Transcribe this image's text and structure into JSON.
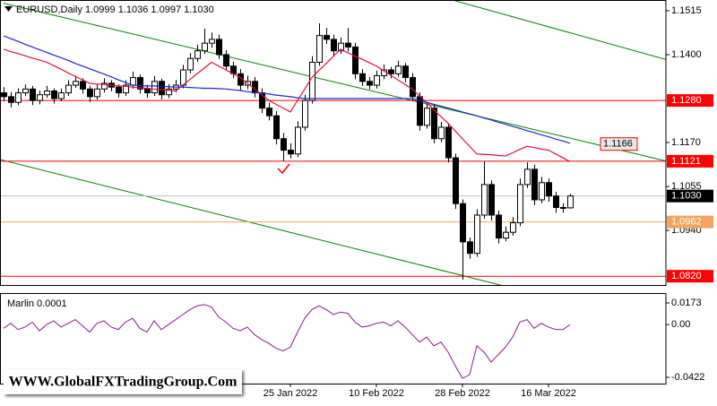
{
  "chart_data": [
    {
      "type": "candlestick",
      "title": "EURUSD,Daily  1.0999 1.1036 1.0997 1.1030",
      "categories": [
        null,
        null,
        null,
        null,
        null,
        null,
        null,
        null,
        null,
        null,
        null,
        null,
        null,
        null,
        null,
        null,
        null,
        null,
        null,
        null,
        null,
        null,
        null,
        null,
        null,
        null,
        null,
        null,
        null,
        null,
        null,
        null,
        null,
        null,
        null,
        null,
        null,
        null,
        null,
        null,
        "25 Jan 2022",
        null,
        null,
        null,
        null,
        null,
        null,
        null,
        null,
        null,
        null,
        null,
        "10 Feb 2022",
        null,
        null,
        null,
        null,
        null,
        null,
        null,
        null,
        null,
        null,
        null,
        "28 Feb 2022",
        null,
        null,
        null,
        null,
        null,
        null,
        null,
        null,
        null,
        null,
        null,
        "16 Mar 2022",
        null,
        null,
        null
      ],
      "candles": [
        [
          1.13,
          1.1315,
          1.1278,
          1.129
        ],
        [
          1.129,
          1.1302,
          1.1262,
          1.1275
        ],
        [
          1.1275,
          1.1312,
          1.1268,
          1.13
        ],
        [
          1.13,
          1.1322,
          1.1291,
          1.131
        ],
        [
          1.131,
          1.1318,
          1.1268,
          1.128
        ],
        [
          1.128,
          1.1306,
          1.127,
          1.1295
        ],
        [
          1.1295,
          1.1318,
          1.1287,
          1.1305
        ],
        [
          1.1305,
          1.1312,
          1.1272,
          1.1285
        ],
        [
          1.1285,
          1.1311,
          1.1278,
          1.13
        ],
        [
          1.13,
          1.1333,
          1.1292,
          1.132
        ],
        [
          1.132,
          1.1345,
          1.1313,
          1.133
        ],
        [
          1.133,
          1.1338,
          1.1298,
          1.131
        ],
        [
          1.131,
          1.1318,
          1.1276,
          1.129
        ],
        [
          1.129,
          1.1322,
          1.1282,
          1.131
        ],
        [
          1.131,
          1.1338,
          1.1301,
          1.1325
        ],
        [
          1.1325,
          1.1333,
          1.1304,
          1.1315
        ],
        [
          1.1315,
          1.1322,
          1.1288,
          1.13
        ],
        [
          1.13,
          1.1333,
          1.1292,
          1.132
        ],
        [
          1.132,
          1.1356,
          1.1311,
          1.134
        ],
        [
          1.134,
          1.1348,
          1.1298,
          1.131
        ],
        [
          1.131,
          1.1321,
          1.1287,
          1.13
        ],
        [
          1.13,
          1.1344,
          1.1292,
          1.133
        ],
        [
          1.133,
          1.1337,
          1.1283,
          1.1295
        ],
        [
          1.1295,
          1.1323,
          1.1286,
          1.131
        ],
        [
          1.131,
          1.1334,
          1.1301,
          1.132
        ],
        [
          1.132,
          1.1373,
          1.1312,
          1.136
        ],
        [
          1.136,
          1.1404,
          1.1351,
          1.139
        ],
        [
          1.139,
          1.1426,
          1.1381,
          1.141
        ],
        [
          1.141,
          1.1468,
          1.1402,
          1.143
        ],
        [
          1.143,
          1.1458,
          1.1418,
          1.144
        ],
        [
          1.144,
          1.1452,
          1.1389,
          1.14
        ],
        [
          1.14,
          1.1412,
          1.1358,
          1.137
        ],
        [
          1.137,
          1.1381,
          1.1338,
          1.135
        ],
        [
          1.135,
          1.1362,
          1.1307,
          1.132
        ],
        [
          1.132,
          1.1345,
          1.131,
          1.133
        ],
        [
          1.133,
          1.1341,
          1.1288,
          1.13
        ],
        [
          1.13,
          1.1312,
          1.1247,
          1.126
        ],
        [
          1.126,
          1.1274,
          1.1228,
          1.124
        ],
        [
          1.124,
          1.1252,
          1.1165,
          1.118
        ],
        [
          1.118,
          1.1195,
          1.1122,
          1.115
        ],
        [
          1.115,
          1.1168,
          1.1128,
          1.114
        ],
        [
          1.114,
          1.1225,
          1.1132,
          1.121
        ],
        [
          1.121,
          1.1295,
          1.1201,
          1.128
        ],
        [
          1.128,
          1.1396,
          1.1272,
          1.138
        ],
        [
          1.138,
          1.1482,
          1.1371,
          1.145
        ],
        [
          1.145,
          1.147,
          1.1428,
          1.144
        ],
        [
          1.144,
          1.1452,
          1.1398,
          1.141
        ],
        [
          1.141,
          1.1445,
          1.1402,
          1.143
        ],
        [
          1.143,
          1.147,
          1.1408,
          1.142
        ],
        [
          1.142,
          1.1431,
          1.1336,
          1.135
        ],
        [
          1.135,
          1.1362,
          1.1318,
          1.133
        ],
        [
          1.133,
          1.1341,
          1.1309,
          1.132
        ],
        [
          1.132,
          1.1358,
          1.1311,
          1.1345
        ],
        [
          1.1345,
          1.1374,
          1.1336,
          1.136
        ],
        [
          1.136,
          1.1368,
          1.1338,
          1.135
        ],
        [
          1.135,
          1.1384,
          1.1342,
          1.137
        ],
        [
          1.137,
          1.1378,
          1.1328,
          1.134
        ],
        [
          1.134,
          1.1352,
          1.1278,
          1.129
        ],
        [
          1.129,
          1.1301,
          1.1201,
          1.1215
        ],
        [
          1.1215,
          1.1274,
          1.1206,
          1.126
        ],
        [
          1.126,
          1.1271,
          1.1168,
          1.118
        ],
        [
          1.118,
          1.1224,
          1.1171,
          1.121
        ],
        [
          1.121,
          1.1221,
          1.1118,
          1.113
        ],
        [
          1.113,
          1.1141,
          1.0996,
          1.101
        ],
        [
          1.101,
          1.1021,
          1.0811,
          1.091
        ],
        [
          1.091,
          1.0921,
          1.0866,
          1.088
        ],
        [
          1.088,
          1.0995,
          1.0871,
          1.098
        ],
        [
          1.098,
          1.112,
          1.0971,
          1.106
        ],
        [
          1.106,
          1.1071,
          1.0966,
          1.098
        ],
        [
          1.098,
          1.0991,
          1.0906,
          1.092
        ],
        [
          1.092,
          1.095,
          1.0911,
          1.0935
        ],
        [
          1.0935,
          1.0975,
          1.0926,
          1.096
        ],
        [
          1.096,
          1.1076,
          1.0951,
          1.106
        ],
        [
          1.106,
          1.1118,
          1.1051,
          1.11
        ],
        [
          1.11,
          1.1112,
          1.1006,
          1.102
        ],
        [
          1.102,
          1.108,
          1.1011,
          1.1065
        ],
        [
          1.1065,
          1.1076,
          1.1015,
          1.103
        ],
        [
          1.103,
          1.1041,
          1.0986,
          1.1
        ],
        [
          1.1,
          1.1011,
          1.0986,
          1.0999
        ],
        [
          1.0999,
          1.1036,
          1.0997,
          1.103
        ]
      ],
      "up_color": "#ffffff",
      "down_color": "#000000",
      "series": [
        {
          "color": "#dc143c",
          "values": [
            1.1414,
            1.1408,
            1.1403,
            1.1397,
            1.1391,
            1.1386,
            1.138,
            1.1371,
            1.1362,
            1.1352,
            1.1343,
            1.1334,
            1.1325,
            1.1323,
            1.1322,
            1.132,
            1.1318,
            1.1317,
            1.1315,
            1.1313,
            1.1312,
            1.131,
            1.1308,
            1.1307,
            1.1305,
            1.132,
            1.1335,
            1.135,
            1.1365,
            1.138,
            1.137,
            1.136,
            1.135,
            1.134,
            1.1325,
            1.131,
            1.1295,
            1.128,
            1.127,
            1.126,
            1.125,
            1.128,
            1.131,
            1.134,
            1.1359,
            1.1377,
            1.1396,
            1.1414,
            1.1405,
            1.1396,
            1.1388,
            1.1379,
            1.137,
            1.1358,
            1.1346,
            1.1334,
            1.1322,
            1.131,
            1.1292,
            1.1274,
            1.1256,
            1.1238,
            1.122,
            1.12,
            1.118,
            1.116,
            1.114,
            1.1139,
            1.1138,
            1.1136,
            1.1135,
            1.1143,
            1.1152,
            1.116,
            1.1157,
            1.1153,
            1.115,
            1.114,
            1.113,
            1.112
          ]
        },
        {
          "color": "#1e28c8",
          "values": [
            1.1449,
            1.1442,
            1.1435,
            1.1427,
            1.142,
            1.1413,
            1.1406,
            1.1399,
            1.1392,
            1.1385,
            1.1377,
            1.137,
            1.1363,
            1.1356,
            1.1349,
            1.1342,
            1.1334,
            1.1327,
            1.132,
            1.1319,
            1.1318,
            1.1318,
            1.1317,
            1.1316,
            1.1315,
            1.1315,
            1.1314,
            1.1313,
            1.1312,
            1.1312,
            1.1311,
            1.131,
            1.1308,
            1.1306,
            1.1303,
            1.1301,
            1.1299,
            1.1297,
            1.1294,
            1.1292,
            1.129,
            1.1287,
            1.1285,
            1.1285,
            1.1285,
            1.1285,
            1.1285,
            1.1285,
            1.1285,
            1.1285,
            1.1285,
            1.1285,
            1.1285,
            1.1285,
            1.1285,
            1.1285,
            1.1285,
            1.1285,
            1.128,
            1.1275,
            1.127,
            1.1265,
            1.126,
            1.1255,
            1.125,
            1.1245,
            1.124,
            1.1234,
            1.1229,
            1.1223,
            1.1218,
            1.1212,
            1.1207,
            1.1201,
            1.1196,
            1.119,
            1.1185,
            1.1179,
            1.1174,
            1.1168
          ]
        }
      ],
      "levels": [
        {
          "value": 1.128,
          "label": "1.1280",
          "color": "#ff0000"
        },
        {
          "value": 1.1121,
          "label": "1.1121",
          "color": "#ff0000"
        },
        {
          "value": 1.0962,
          "label": "1.0962",
          "color": "#f4a460"
        },
        {
          "value": 1.082,
          "label": "1.0820",
          "color": "#ff0000"
        },
        {
          "value": 1.103,
          "label": "1.1030",
          "color": "#000000"
        }
      ],
      "annotations": [
        {
          "value": 1.1166,
          "label": "1.1166",
          "color": "#ff0000"
        }
      ],
      "ylim": [
        1.0797,
        1.1543
      ],
      "yticks": [
        1.1515,
        {
          "value": 1.14,
          "label": "1.1400"
        },
        {
          "value": 1.117,
          "label": "1.1170"
        },
        1.1055,
        {
          "value": 1.094,
          "label": "1.0940"
        }
      ]
    },
    {
      "type": "line",
      "title": "Marlin 0.0001",
      "series": [
        {
          "color": "#8b1a8b",
          "values": [
            -0.003,
            0.001,
            -0.004,
            -0.002,
            0.002,
            -0.005,
            0.0,
            0.003,
            -0.002,
            0.001,
            0.004,
            -0.001,
            -0.006,
            0.001,
            0.003,
            -0.002,
            -0.004,
            0.002,
            0.005,
            -0.003,
            -0.006,
            0.003,
            -0.004,
            0.0,
            0.004,
            0.008,
            0.012,
            0.015,
            0.016,
            0.014,
            0.006,
            0.002,
            -0.003,
            -0.005,
            -0.002,
            -0.008,
            -0.012,
            -0.015,
            -0.019,
            -0.021,
            -0.018,
            -0.006,
            0.005,
            0.012,
            0.015,
            0.012,
            0.008,
            0.01,
            0.009,
            0.002,
            -0.002,
            -0.001,
            0.001,
            0.002,
            -0.001,
            0.003,
            -0.002,
            -0.008,
            -0.014,
            -0.01,
            -0.017,
            -0.014,
            -0.022,
            -0.033,
            -0.043,
            -0.04,
            -0.017,
            -0.022,
            -0.03,
            -0.024,
            -0.018,
            -0.01,
            0.002,
            0.004,
            -0.003,
            0.001,
            -0.002,
            -0.004,
            -0.004,
            0.0
          ]
        }
      ],
      "ylim": [
        -0.0472,
        0.0252
      ],
      "yticks": [
        0.0173,
        {
          "value": 0,
          "label": "0.00"
        },
        -0.0422
      ]
    }
  ],
  "watermark": "WWW.GlobalFXTradingGroup.Com"
}
